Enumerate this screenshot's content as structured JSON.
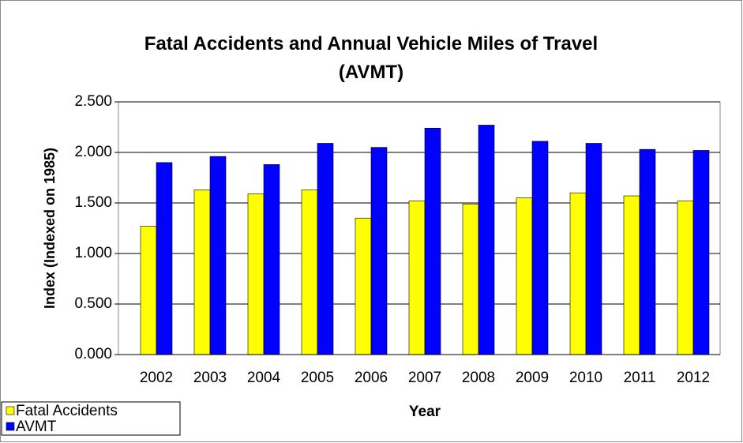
{
  "chart_data": {
    "type": "bar",
    "title": "Fatal Accidents and Annual Vehicle Miles of Travel (AVMT)",
    "x_label": "Year",
    "y_label": "Index (Indexed on 1985)",
    "categories": [
      "2002",
      "2003",
      "2004",
      "2005",
      "2006",
      "2007",
      "2008",
      "2009",
      "2010",
      "2011",
      "2012"
    ],
    "series": [
      {
        "name": "Fatal Accidents",
        "color": "#ffff00",
        "values": [
          1.27,
          1.63,
          1.59,
          1.63,
          1.35,
          1.52,
          1.49,
          1.55,
          1.6,
          1.57,
          1.52
        ]
      },
      {
        "name": "AVMT",
        "color": "#0000ff",
        "values": [
          1.9,
          1.96,
          1.88,
          2.09,
          2.05,
          2.24,
          2.27,
          2.11,
          2.09,
          2.03,
          2.02
        ]
      }
    ],
    "ylim": [
      0,
      2.5
    ],
    "yticks": [
      {
        "value": 0,
        "label": "0.000"
      },
      {
        "value": 0.5,
        "label": "0.500"
      },
      {
        "value": 1,
        "label": "1.000"
      },
      {
        "value": 1.5,
        "label": "1.500"
      },
      {
        "value": 2,
        "label": "2.000"
      },
      {
        "value": 2.5,
        "label": "2.500"
      }
    ],
    "grid": true,
    "legend": "bottom-left"
  }
}
